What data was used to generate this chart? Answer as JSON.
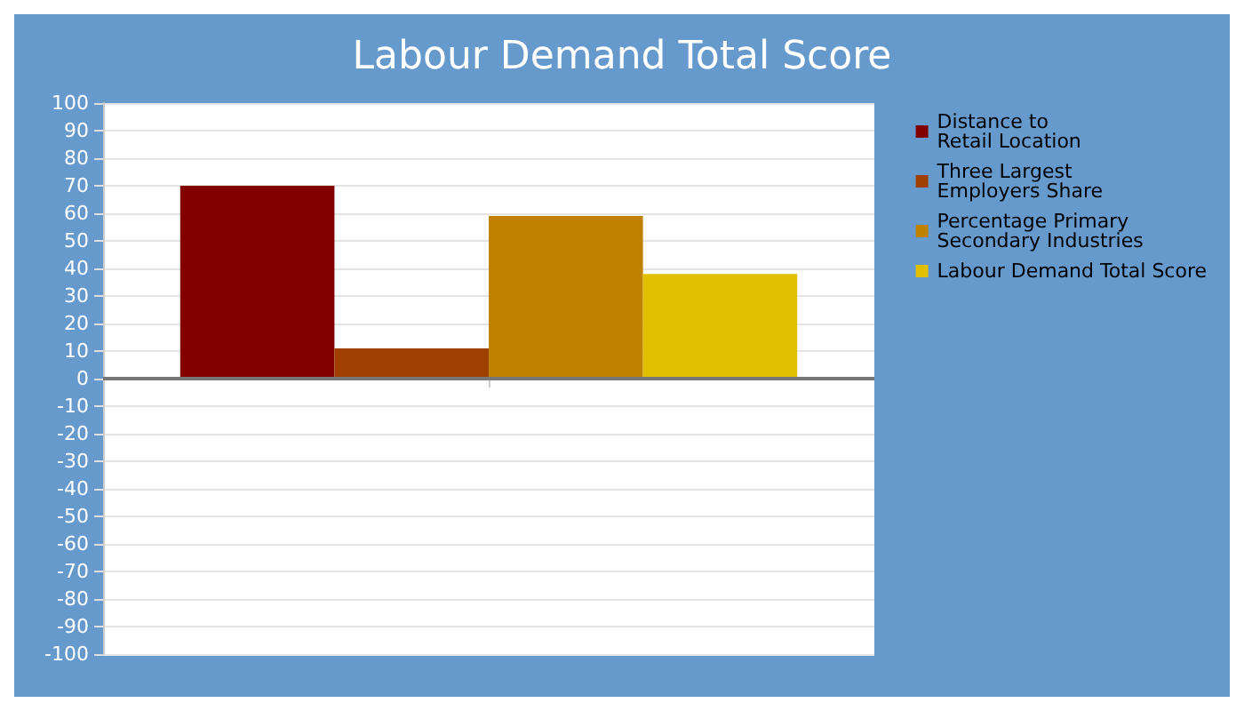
{
  "chart_data": {
    "type": "bar",
    "title": "Labour Demand Total Score",
    "categories": [
      null
    ],
    "series": [
      {
        "name": "Distance to\nRetail Location",
        "color": "#800000",
        "values": [
          70
        ]
      },
      {
        "name": "Three Largest\nEmployers Share",
        "color": "#a04000",
        "values": [
          11
        ]
      },
      {
        "name": "Percentage Primary\nSecondary Industries",
        "color": "#c08000",
        "values": [
          59
        ]
      },
      {
        "name": "Labour Demand Total Score",
        "color": "#e0c000",
        "values": [
          38
        ]
      }
    ],
    "ylim": [
      -100,
      100
    ],
    "yticks": [
      -100,
      -90,
      -80,
      -70,
      -60,
      -50,
      -40,
      -30,
      -20,
      -10,
      0,
      10,
      20,
      30,
      40,
      50,
      60,
      70,
      80,
      90,
      100
    ],
    "grid": "y",
    "legend": "right"
  }
}
